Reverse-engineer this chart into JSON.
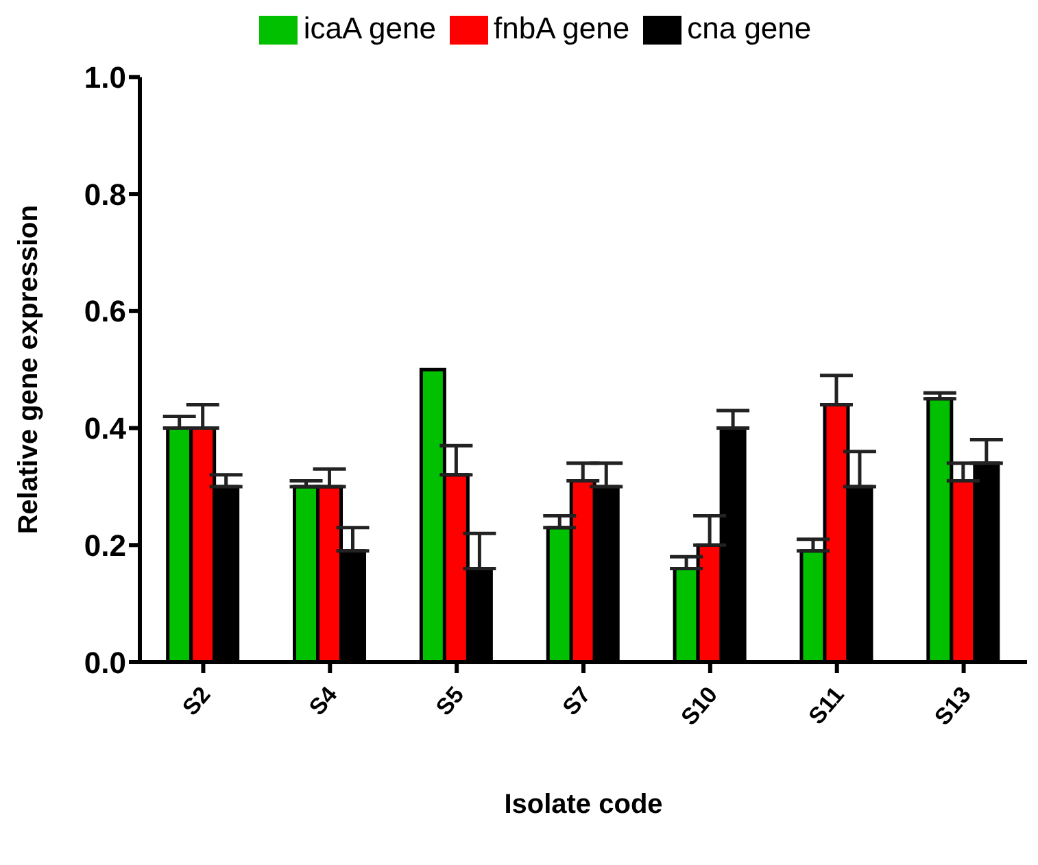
{
  "chart_data": {
    "type": "bar",
    "xlabel": "Isolate code",
    "ylabel": "Relative gene expression",
    "categories": [
      "S2",
      "S4",
      "S5",
      "S7",
      "S10",
      "S11",
      "S13"
    ],
    "series": [
      {
        "name": "icaA gene",
        "color": "#00c000",
        "values": [
          0.4,
          0.3,
          0.5,
          0.23,
          0.16,
          0.19,
          0.45
        ],
        "errors": [
          [
            0.4,
            0.42
          ],
          [
            0.3,
            0.31
          ],
          null,
          [
            0.23,
            0.25
          ],
          [
            0.16,
            0.18
          ],
          [
            0.19,
            0.21
          ],
          [
            0.45,
            0.46
          ]
        ]
      },
      {
        "name": "fnbA gene",
        "color": "#ff0000",
        "values": [
          0.4,
          0.3,
          0.32,
          0.31,
          0.2,
          0.44,
          0.31
        ],
        "errors": [
          [
            0.4,
            0.44
          ],
          [
            0.3,
            0.33
          ],
          [
            0.32,
            0.37
          ],
          [
            0.31,
            0.34
          ],
          [
            0.2,
            0.25
          ],
          [
            0.44,
            0.49
          ],
          [
            0.31,
            0.34
          ]
        ]
      },
      {
        "name": "cna gene",
        "color": "#000000",
        "values": [
          0.3,
          0.19,
          0.16,
          0.3,
          0.4,
          0.3,
          0.34
        ],
        "errors": [
          [
            0.3,
            0.32
          ],
          [
            0.19,
            0.23
          ],
          [
            0.16,
            0.22
          ],
          [
            0.3,
            0.34
          ],
          [
            0.4,
            0.43
          ],
          [
            0.3,
            0.36
          ],
          [
            0.34,
            0.38
          ]
        ]
      }
    ],
    "ylim": [
      0,
      1
    ],
    "yticks": [
      {
        "value": 0,
        "label": "0.0"
      },
      0.2,
      0.4,
      0.6,
      0.8,
      {
        "value": 1,
        "label": "1.0"
      }
    ],
    "grid": false,
    "legend": "top"
  }
}
